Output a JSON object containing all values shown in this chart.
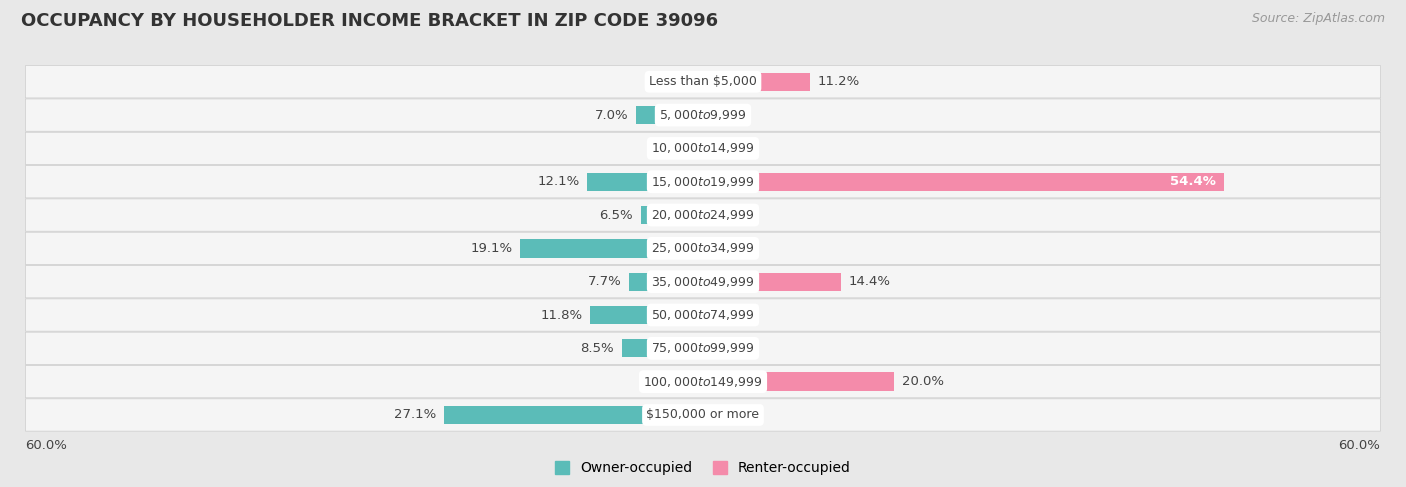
{
  "title": "OCCUPANCY BY HOUSEHOLDER INCOME BRACKET IN ZIP CODE 39096",
  "source": "Source: ZipAtlas.com",
  "categories": [
    "Less than $5,000",
    "$5,000 to $9,999",
    "$10,000 to $14,999",
    "$15,000 to $19,999",
    "$20,000 to $24,999",
    "$25,000 to $34,999",
    "$35,000 to $49,999",
    "$50,000 to $74,999",
    "$75,000 to $99,999",
    "$100,000 to $149,999",
    "$150,000 or more"
  ],
  "owner_values": [
    0.0,
    7.0,
    0.0,
    12.1,
    6.5,
    19.1,
    7.7,
    11.8,
    8.5,
    0.24,
    27.1
  ],
  "renter_values": [
    11.2,
    0.0,
    0.0,
    54.4,
    0.0,
    0.0,
    14.4,
    0.0,
    0.0,
    20.0,
    0.0
  ],
  "owner_color": "#5bbcb8",
  "renter_color": "#f48baa",
  "bar_height": 0.55,
  "xlim": 60.0,
  "background_color": "#e8e8e8",
  "row_bg_color": "#f5f5f5",
  "title_fontsize": 13,
  "label_fontsize": 9.5,
  "category_fontsize": 9,
  "legend_fontsize": 10,
  "source_fontsize": 9
}
